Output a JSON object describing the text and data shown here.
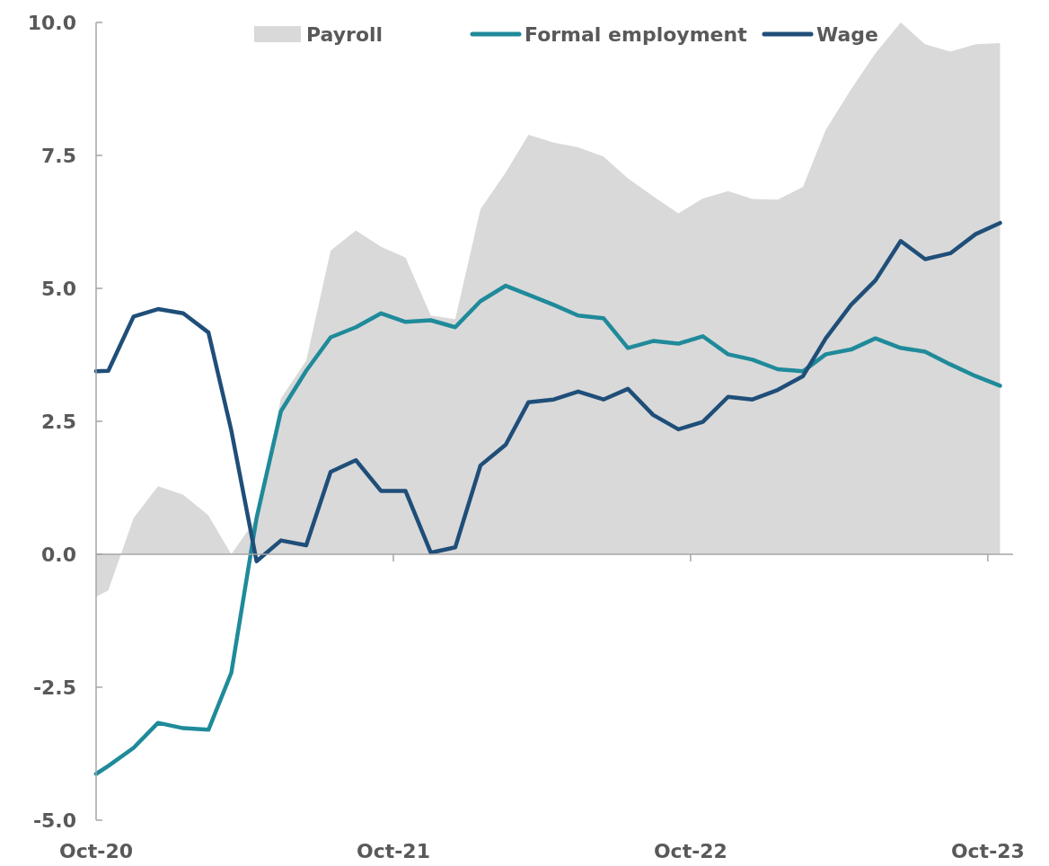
{
  "chart_data": {
    "type": "line",
    "x": [
      "2020-10-01",
      "2020-10-16",
      "2020-11-16",
      "2020-12-16",
      "2021-01-16",
      "2021-02-16",
      "2021-03-16",
      "2021-04-16",
      "2021-05-16",
      "2021-06-16",
      "2021-07-16",
      "2021-08-16",
      "2021-09-16",
      "2021-10-16",
      "2021-11-16",
      "2021-12-16",
      "2022-01-16",
      "2022-02-16",
      "2022-03-16",
      "2022-04-16",
      "2022-05-16",
      "2022-06-16",
      "2022-07-16",
      "2022-08-16",
      "2022-09-16",
      "2022-10-16",
      "2022-11-16",
      "2022-12-16",
      "2023-01-16",
      "2023-02-16",
      "2023-03-16",
      "2023-04-16",
      "2023-05-16",
      "2023-06-16",
      "2023-07-16",
      "2023-08-16",
      "2023-09-16",
      "2023-10-16"
    ],
    "series": [
      {
        "name": "Payroll",
        "type": "area",
        "color": "#d9d9d9",
        "values": [
          -0.8,
          -0.68,
          0.68,
          1.28,
          1.12,
          0.73,
          0.0,
          0.68,
          2.93,
          3.64,
          5.71,
          6.09,
          5.78,
          5.58,
          4.49,
          4.42,
          6.49,
          7.18,
          7.89,
          7.74,
          7.65,
          7.48,
          7.07,
          6.73,
          6.41,
          6.69,
          6.83,
          6.68,
          6.67,
          6.91,
          7.98,
          8.74,
          9.42,
          10.0,
          9.59,
          9.45,
          9.59,
          9.61
        ]
      },
      {
        "name": "Formal employment",
        "color": "#1f8a9a",
        "values": [
          -4.13,
          -3.98,
          -3.64,
          -3.17,
          -3.27,
          -3.3,
          -2.23,
          0.68,
          2.69,
          3.45,
          4.08,
          4.27,
          4.53,
          4.37,
          4.4,
          4.27,
          4.76,
          5.05,
          4.88,
          4.69,
          4.49,
          4.44,
          3.88,
          4.01,
          3.96,
          4.1,
          3.76,
          3.66,
          3.48,
          3.44,
          3.76,
          3.85,
          4.06,
          3.88,
          3.81,
          3.57,
          3.35,
          3.17
        ]
      },
      {
        "name": "Wage",
        "color": "#1f4e79",
        "values": [
          3.44,
          3.45,
          4.47,
          4.61,
          4.53,
          4.17,
          2.33,
          -0.13,
          0.26,
          0.17,
          1.55,
          1.77,
          1.19,
          1.19,
          0.03,
          0.13,
          1.67,
          2.06,
          2.86,
          2.91,
          3.06,
          2.91,
          3.11,
          2.62,
          2.35,
          2.49,
          2.96,
          2.91,
          3.09,
          3.35,
          4.06,
          4.69,
          5.15,
          5.89,
          5.55,
          5.66,
          6.02,
          6.23
        ]
      }
    ],
    "xlim": [
      "2020-10-01",
      "2023-11-01"
    ],
    "xticks": [
      {
        "value": "2020-10-01",
        "label": "Oct-20"
      },
      {
        "value": "2021-10-01",
        "label": "Oct-21"
      },
      {
        "value": "2022-10-01",
        "label": "Oct-22"
      },
      {
        "value": "2023-10-01",
        "label": "Oct-23"
      }
    ],
    "ylim": [
      -5,
      10
    ],
    "yticks": [
      {
        "value": -5,
        "label": "-5.0"
      },
      {
        "value": -2.5,
        "label": "-2.5"
      },
      {
        "value": 0,
        "label": "0.0"
      },
      {
        "value": 2.5,
        "label": "2.5"
      },
      {
        "value": 5,
        "label": "5.0"
      },
      {
        "value": 7.5,
        "label": "7.5"
      },
      {
        "value": 10,
        "label": "10.0"
      }
    ],
    "legend": "top",
    "marker": "none",
    "line_style": "solid"
  }
}
